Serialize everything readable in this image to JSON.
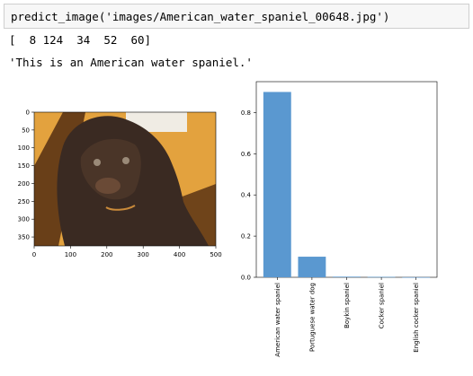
{
  "input": {
    "code": "predict_image('images/American_water_spaniel_00648.jpg')"
  },
  "outputs": {
    "array_line": "[  8 124  34  52  60]",
    "message_line": "'This is an American water spaniel.'"
  },
  "image_plot": {
    "x_ticks": [
      "0",
      "100",
      "200",
      "300",
      "400",
      "500"
    ],
    "y_ticks": [
      "0",
      "50",
      "100",
      "150",
      "200",
      "250",
      "300",
      "350"
    ],
    "colors": {
      "background": "#e3a23e",
      "fur": "#3a2a22",
      "floor": "#5b3414",
      "eye": "#9a8a78"
    }
  },
  "chart_data": {
    "type": "bar",
    "categories": [
      "American water spaniel",
      "Portuguese water dog",
      "Boykin spaniel",
      "Cocker spaniel",
      "English cocker spaniel"
    ],
    "values": [
      0.9,
      0.1,
      0.003,
      0.002,
      0.0005
    ],
    "ylim": [
      0,
      0.95
    ],
    "yticks": [
      "0.0",
      "0.2",
      "0.4",
      "0.6",
      "0.8"
    ],
    "bar_color": "#5a98d0"
  }
}
